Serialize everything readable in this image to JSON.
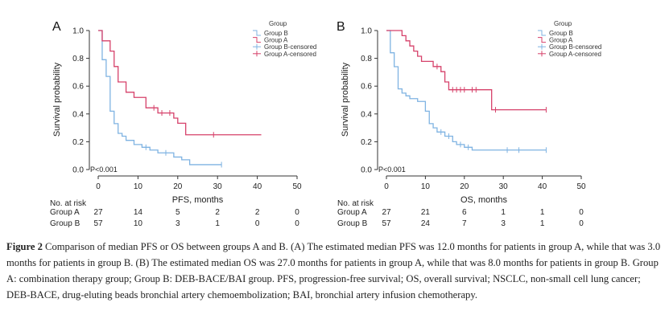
{
  "colors": {
    "group_a": "#d6416a",
    "group_b": "#7fb3e2",
    "axis": "#333333"
  },
  "chart_data": [
    {
      "type": "line",
      "panel_label": "A",
      "xlabel": "PFS, months",
      "ylabel": "Survival probability",
      "xlim": [
        0,
        50
      ],
      "ylim": [
        0,
        1
      ],
      "x_ticks": [
        "0",
        "10",
        "20",
        "30",
        "40",
        "50"
      ],
      "y_ticks": [
        "0.0",
        "0.2",
        "0.4",
        "0.6",
        "0.8",
        "1.0"
      ],
      "grid": false,
      "pvalue": "P<0.001",
      "legend": {
        "title": "Group",
        "position": "top-right",
        "entries": [
          "Group B",
          "Group A",
          "Group B-censored",
          "Group A-censored"
        ]
      },
      "series": [
        {
          "name": "Group A",
          "steps": [
            [
              0,
              1.0
            ],
            [
              1,
              0.926
            ],
            [
              3,
              0.852
            ],
            [
              4,
              0.741
            ],
            [
              5,
              0.63
            ],
            [
              7,
              0.556
            ],
            [
              9,
              0.519
            ],
            [
              12,
              0.444
            ],
            [
              15,
              0.407
            ],
            [
              19,
              0.37
            ],
            [
              20,
              0.333
            ],
            [
              22,
              0.25
            ],
            [
              41,
              0.25
            ]
          ],
          "censored": [
            [
              14,
              0.444
            ],
            [
              16,
              0.407
            ],
            [
              18,
              0.407
            ],
            [
              29,
              0.25
            ]
          ]
        },
        {
          "name": "Group B",
          "steps": [
            [
              0,
              1.0
            ],
            [
              1,
              0.79
            ],
            [
              2,
              0.67
            ],
            [
              3,
              0.42
            ],
            [
              4,
              0.33
            ],
            [
              5,
              0.26
            ],
            [
              6,
              0.24
            ],
            [
              7,
              0.21
            ],
            [
              9,
              0.18
            ],
            [
              11,
              0.16
            ],
            [
              13,
              0.14
            ],
            [
              15,
              0.12
            ],
            [
              19,
              0.09
            ],
            [
              21,
              0.07
            ],
            [
              23,
              0.035
            ],
            [
              31,
              0.035
            ]
          ],
          "censored": [
            [
              12,
              0.16
            ],
            [
              17,
              0.12
            ],
            [
              31,
              0.035
            ]
          ]
        }
      ],
      "risk_table": {
        "header": "No. at risk",
        "x": [
          0,
          10,
          20,
          30,
          40,
          50
        ],
        "rows": [
          {
            "label": "Group A",
            "values": [
              "27",
              "14",
              "5",
              "2",
              "2",
              "0"
            ]
          },
          {
            "label": "Group B",
            "values": [
              "57",
              "10",
              "3",
              "1",
              "0",
              "0"
            ]
          }
        ]
      }
    },
    {
      "type": "line",
      "panel_label": "B",
      "xlabel": "OS, months",
      "ylabel": "Survival probability",
      "xlim": [
        0,
        50
      ],
      "ylim": [
        0,
        1
      ],
      "x_ticks": [
        "0",
        "10",
        "20",
        "30",
        "40",
        "50"
      ],
      "y_ticks": [
        "0.0",
        "0.2",
        "0.4",
        "0.6",
        "0.8",
        "1.0"
      ],
      "grid": false,
      "pvalue": "P<0.001",
      "legend": {
        "title": "Group",
        "position": "top-right",
        "entries": [
          "Group B",
          "Group A",
          "Group B-censored",
          "Group A-censored"
        ]
      },
      "series": [
        {
          "name": "Group A",
          "steps": [
            [
              0,
              1.0
            ],
            [
              4,
              0.963
            ],
            [
              5,
              0.926
            ],
            [
              6,
              0.889
            ],
            [
              7,
              0.852
            ],
            [
              8,
              0.815
            ],
            [
              9,
              0.778
            ],
            [
              12,
              0.741
            ],
            [
              14,
              0.704
            ],
            [
              15,
              0.63
            ],
            [
              16,
              0.574
            ],
            [
              27,
              0.43
            ],
            [
              41,
              0.43
            ]
          ],
          "censored": [
            [
              13,
              0.741
            ],
            [
              17,
              0.574
            ],
            [
              18,
              0.574
            ],
            [
              19,
              0.574
            ],
            [
              20,
              0.574
            ],
            [
              22,
              0.574
            ],
            [
              23,
              0.574
            ],
            [
              28,
              0.43
            ],
            [
              41,
              0.43
            ]
          ]
        },
        {
          "name": "Group B",
          "steps": [
            [
              0,
              1.0
            ],
            [
              1,
              0.84
            ],
            [
              2,
              0.74
            ],
            [
              3,
              0.58
            ],
            [
              4,
              0.55
            ],
            [
              5,
              0.53
            ],
            [
              6,
              0.51
            ],
            [
              8,
              0.49
            ],
            [
              10,
              0.42
            ],
            [
              11,
              0.33
            ],
            [
              12,
              0.3
            ],
            [
              13,
              0.27
            ],
            [
              15,
              0.24
            ],
            [
              17,
              0.2
            ],
            [
              18,
              0.18
            ],
            [
              20,
              0.16
            ],
            [
              22,
              0.14
            ],
            [
              41,
              0.14
            ]
          ],
          "censored": [
            [
              14,
              0.27
            ],
            [
              16,
              0.24
            ],
            [
              19,
              0.18
            ],
            [
              21,
              0.16
            ],
            [
              31,
              0.14
            ],
            [
              34,
              0.14
            ],
            [
              41,
              0.14
            ]
          ]
        }
      ],
      "risk_table": {
        "header": "No. at risk",
        "x": [
          0,
          10,
          20,
          30,
          40,
          50
        ],
        "rows": [
          {
            "label": "Group A",
            "values": [
              "27",
              "21",
              "6",
              "1",
              "1",
              "0"
            ]
          },
          {
            "label": "Group B",
            "values": [
              "57",
              "24",
              "7",
              "3",
              "1",
              "0"
            ]
          }
        ]
      }
    }
  ],
  "caption": {
    "label": "Figure 2",
    "text": "Comparison of median PFS or OS between groups A and B. (A) The estimated median PFS was 12.0 months for patients in group A, while that was 3.0 months for patients in group B. (B) The estimated median OS was 27.0 months for patients in group A, while that was 8.0 months for patients in group B. Group A: combination therapy group; Group B: DEB-BACE/BAI group. PFS, progression-free survival; OS, overall survival; NSCLC, non-small cell lung cancer; DEB-BACE, drug-eluting beads bronchial artery chemoembolization; BAI, bronchial artery infusion chemotherapy."
  }
}
